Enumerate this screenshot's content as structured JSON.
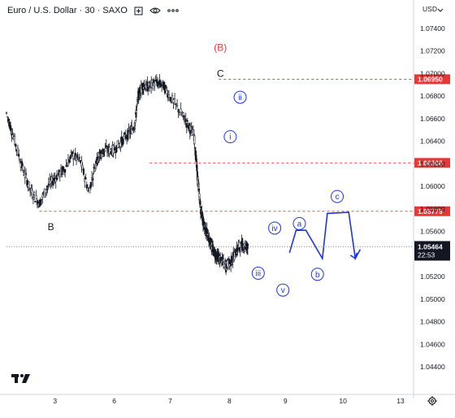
{
  "header": {
    "symbol_title": "Euro / U.S. Dollar · 30 · SAXO",
    "currency": "USD",
    "icons": [
      "compare-icon",
      "eye-icon",
      "more-icon"
    ]
  },
  "footer": {
    "logo": "TV",
    "settings_icon": "gear-icon"
  },
  "colors": {
    "candle": "#131722",
    "level_line": "#e53935",
    "projection": "#1e36d8",
    "wave_label": "#1e36d8",
    "degree_label": "#e53935"
  },
  "chart_data": {
    "type": "line",
    "title": "Euro / U.S. Dollar · 30 · SAXO",
    "ylim": [
      1.044,
      1.076
    ],
    "x_tick_labels": [
      "3",
      "6",
      "7",
      "8",
      "9",
      "10",
      "13"
    ],
    "y_tick_labels": [
      "1.07400",
      "1.07200",
      "1.07000",
      "1.06800",
      "1.06600",
      "1.06400",
      "1.06200",
      "1.06000",
      "1.05800",
      "1.05600",
      "1.05400",
      "1.05200",
      "1.05000",
      "1.04800",
      "1.04600",
      "1.04400"
    ],
    "y_ticks": [
      1.074,
      1.072,
      1.07,
      1.068,
      1.066,
      1.064,
      1.062,
      1.06,
      1.058,
      1.056,
      1.054,
      1.052,
      1.05,
      1.048,
      1.046,
      1.044
    ],
    "price_series": {
      "x": [
        0,
        0.5,
        1,
        1.5,
        2,
        2.5,
        3,
        3.5,
        4,
        4.5,
        5,
        5.5,
        5.7,
        6,
        6.5,
        7,
        7.5,
        7.8,
        8,
        8.3,
        8.6,
        9,
        9.5,
        10,
        10.6,
        11,
        11.4,
        11.6,
        11.8,
        12,
        12.3,
        12.5,
        12.7,
        13,
        13.3,
        13.6,
        13.9,
        14.1,
        14.4,
        14.7
      ],
      "values": [
        1.0665,
        1.064,
        1.0615,
        1.0595,
        1.0585,
        1.06,
        1.0608,
        1.0615,
        1.0628,
        1.0622,
        1.0595,
        1.0625,
        1.0628,
        1.0632,
        1.0632,
        1.064,
        1.0648,
        1.0655,
        1.068,
        1.069,
        1.0688,
        1.0692,
        1.069,
        1.0678,
        1.0665,
        1.0655,
        1.0645,
        1.061,
        1.058,
        1.0565,
        1.0555,
        1.0545,
        1.054,
        1.0535,
        1.053,
        1.0532,
        1.054,
        1.0546,
        1.0548,
        1.0546
      ]
    },
    "levels": [
      {
        "price": 1.0695,
        "label": "1.06950"
      },
      {
        "price": 1.06208,
        "label": "1.06208"
      },
      {
        "price": 1.05779,
        "label": "1.05779"
      }
    ],
    "current_price": {
      "price": 1.05464,
      "label": "1.05464",
      "countdown": "22:53"
    },
    "wave_labels": [
      {
        "text": "(B)",
        "x": 13.0,
        "price": 1.0723,
        "style": "degree"
      },
      {
        "text": "C",
        "x": 13.0,
        "price": 1.07,
        "style": "plain"
      },
      {
        "text": "B",
        "x": 2.7,
        "price": 1.0564,
        "style": "plain"
      },
      {
        "text": "ii",
        "x": 14.2,
        "price": 1.0679,
        "style": "circle"
      },
      {
        "text": "i",
        "x": 13.6,
        "price": 1.0644,
        "style": "circle"
      },
      {
        "text": "iv",
        "x": 16.3,
        "price": 1.0563,
        "style": "circle"
      },
      {
        "text": "iii",
        "x": 15.3,
        "price": 1.0523,
        "style": "circle"
      },
      {
        "text": "v",
        "x": 16.8,
        "price": 1.0508,
        "style": "circle"
      },
      {
        "text": "a",
        "x": 17.8,
        "price": 1.0567,
        "style": "circle"
      },
      {
        "text": "b",
        "x": 18.9,
        "price": 1.0522,
        "style": "circle"
      },
      {
        "text": "c",
        "x": 20.1,
        "price": 1.0591,
        "style": "circle"
      }
    ],
    "projection_path": {
      "x": [
        17.2,
        17.6,
        18.2,
        19.2,
        19.5,
        20.8,
        21.2,
        21.5
      ],
      "values": [
        1.0541,
        1.0561,
        1.0561,
        1.0536,
        1.0576,
        1.0577,
        1.0536,
        1.0544
      ]
    },
    "grid": false,
    "legend": "none"
  }
}
